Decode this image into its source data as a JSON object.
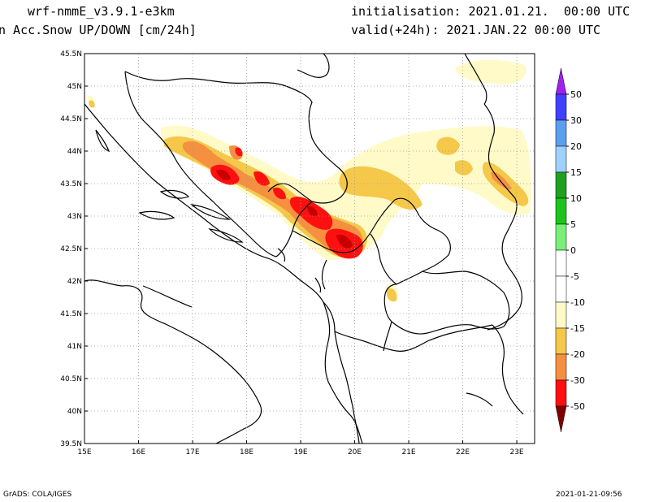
{
  "header": {
    "model": "wrf-nmmE_v3.9.1-e3km",
    "variable": "n Acc.Snow UP/DOWN [cm/24h]",
    "init": "initialisation: 2021.01.21.  00:00 UTC",
    "valid": "valid(+24h): 2021.JAN.22 00:00 UTC"
  },
  "footer": {
    "credit": "GrADS: COLA/IGES",
    "timestamp": "2021-01-21-09:56"
  },
  "map": {
    "lon_labels": [
      "15E",
      "16E",
      "17E",
      "18E",
      "19E",
      "20E",
      "21E",
      "22E",
      "23E"
    ],
    "lat_labels": [
      "45.5N",
      "45N",
      "44.5N",
      "44N",
      "43.5N",
      "43N",
      "42.5N",
      "42N",
      "41.5N",
      "41N",
      "40.5N",
      "40N",
      "39.5N"
    ],
    "lon_range": [
      15,
      23.33
    ],
    "lat_range": [
      39.5,
      45.5
    ],
    "grid": "dotted"
  },
  "colorbar": {
    "labels": [
      "50",
      "30",
      "20",
      "15",
      "10",
      "5",
      "0",
      "-5",
      "-10",
      "-15",
      "-20",
      "-30",
      "-50"
    ],
    "colors": {
      "top_arrow": "#a020f0",
      "c50": "#4040ff",
      "c30": "#5aa0f0",
      "c20": "#a0d0ff",
      "c15": "#20a020",
      "c10": "#1cc41c",
      "c5": "#78f078",
      "c0_upper": "#ffffff",
      "c0_lower": "#ffffff",
      "m5": "#fffac8",
      "m10": "#f5c84a",
      "m15": "#f59040",
      "m20": "#ff1010",
      "m30": "#c80000",
      "bottom_arrow": "#800000"
    }
  }
}
